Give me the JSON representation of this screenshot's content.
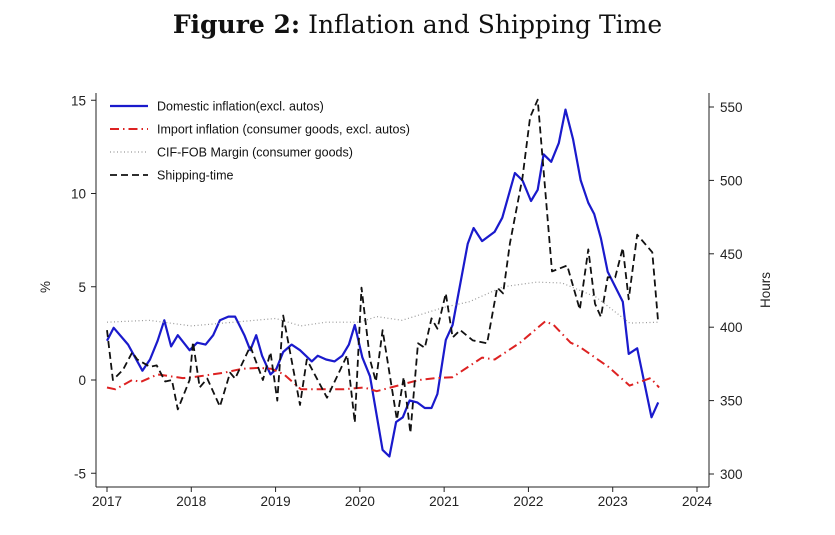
{
  "title": {
    "bold": "Figure 2:",
    "rest": "Inflation and Shipping Time"
  },
  "chart_data": {
    "type": "line",
    "title": "Figure 2: Inflation and Shipping Time",
    "xlabel": "",
    "ylabel": "%",
    "ylabel_right": "Hours",
    "xlim": [
      2017,
      2024
    ],
    "ylim": [
      -5,
      15
    ],
    "ylim_right": [
      300,
      550
    ],
    "x_ticks": [
      "2017",
      "2018",
      "2019",
      "2020",
      "2021",
      "2022",
      "2023",
      "2024"
    ],
    "y_ticks": [
      "-5",
      "0",
      "5",
      "10",
      "15"
    ],
    "y_ticks_right": [
      "300",
      "350",
      "400",
      "450",
      "500",
      "550"
    ],
    "grid": false,
    "legend_position": "top-left",
    "series": [
      {
        "name": "Domestic inflation(excl. autos)",
        "axis": "left",
        "color": "#1a1acc",
        "style": "solid",
        "points": [
          [
            2017.0,
            2.1
          ],
          [
            2017.08,
            2.8
          ],
          [
            2017.25,
            1.9
          ],
          [
            2017.42,
            0.5
          ],
          [
            2017.51,
            1.1
          ],
          [
            2017.6,
            2.1
          ],
          [
            2017.68,
            3.2
          ],
          [
            2017.76,
            1.8
          ],
          [
            2017.84,
            2.4
          ],
          [
            2017.98,
            1.6
          ],
          [
            2018.07,
            2.0
          ],
          [
            2018.17,
            1.9
          ],
          [
            2018.26,
            2.4
          ],
          [
            2018.34,
            3.2
          ],
          [
            2018.44,
            3.4
          ],
          [
            2018.52,
            3.4
          ],
          [
            2018.63,
            2.4
          ],
          [
            2018.7,
            1.6
          ],
          [
            2018.77,
            2.4
          ],
          [
            2018.84,
            1.3
          ],
          [
            2018.94,
            0.3
          ],
          [
            2019.01,
            0.6
          ],
          [
            2019.09,
            1.5
          ],
          [
            2019.19,
            1.9
          ],
          [
            2019.29,
            1.6
          ],
          [
            2019.43,
            1.0
          ],
          [
            2019.5,
            1.3
          ],
          [
            2019.6,
            1.1
          ],
          [
            2019.7,
            1.0
          ],
          [
            2019.79,
            1.3
          ],
          [
            2019.87,
            1.9
          ],
          [
            2019.94,
            2.95
          ],
          [
            2020.03,
            1.2
          ],
          [
            2020.12,
            0.2
          ],
          [
            2020.27,
            -3.75
          ],
          [
            2020.35,
            -4.1
          ],
          [
            2020.43,
            -2.25
          ],
          [
            2020.51,
            -2.0
          ],
          [
            2020.59,
            -1.1
          ],
          [
            2020.68,
            -1.2
          ],
          [
            2020.77,
            -1.5
          ],
          [
            2020.85,
            -1.5
          ],
          [
            2020.92,
            -0.75
          ],
          [
            2021.02,
            2.15
          ],
          [
            2021.1,
            2.95
          ],
          [
            2021.28,
            7.3
          ],
          [
            2021.35,
            8.15
          ],
          [
            2021.45,
            7.45
          ],
          [
            2021.6,
            7.95
          ],
          [
            2021.69,
            8.7
          ],
          [
            2021.84,
            11.1
          ],
          [
            2021.93,
            10.7
          ],
          [
            2022.03,
            9.6
          ],
          [
            2022.11,
            10.2
          ],
          [
            2022.18,
            12.1
          ],
          [
            2022.27,
            11.7
          ],
          [
            2022.36,
            12.7
          ],
          [
            2022.44,
            14.5
          ],
          [
            2022.53,
            12.9
          ],
          [
            2022.62,
            10.7
          ],
          [
            2022.71,
            9.5
          ],
          [
            2022.78,
            8.9
          ],
          [
            2022.86,
            7.6
          ],
          [
            2022.94,
            5.8
          ],
          [
            2023.12,
            4.2
          ],
          [
            2023.19,
            1.4
          ],
          [
            2023.29,
            1.7
          ],
          [
            2023.46,
            -2.0
          ],
          [
            2023.54,
            -1.2
          ]
        ]
      },
      {
        "name": "Import inflation (consumer goods, excl. autos)",
        "axis": "left",
        "color": "#dd2222",
        "style": "dashdot",
        "points": [
          [
            2017.0,
            -0.4
          ],
          [
            2017.1,
            -0.5
          ],
          [
            2017.3,
            0.0
          ],
          [
            2017.4,
            -0.1
          ],
          [
            2017.6,
            0.3
          ],
          [
            2017.9,
            0.1
          ],
          [
            2018.1,
            0.2
          ],
          [
            2018.4,
            0.4
          ],
          [
            2018.6,
            0.6
          ],
          [
            2018.8,
            0.65
          ],
          [
            2018.95,
            0.6
          ],
          [
            2019.1,
            0.3
          ],
          [
            2019.3,
            -0.5
          ],
          [
            2019.5,
            -0.5
          ],
          [
            2019.8,
            -0.5
          ],
          [
            2020.05,
            -0.4
          ],
          [
            2020.2,
            -0.6
          ],
          [
            2020.45,
            -0.3
          ],
          [
            2020.7,
            0.0
          ],
          [
            2020.9,
            0.1
          ],
          [
            2021.1,
            0.15
          ],
          [
            2021.45,
            1.2
          ],
          [
            2021.6,
            1.1
          ],
          [
            2021.9,
            2.0
          ],
          [
            2022.2,
            3.15
          ],
          [
            2022.3,
            2.95
          ],
          [
            2022.5,
            2.0
          ],
          [
            2022.6,
            1.8
          ],
          [
            2022.95,
            0.7
          ],
          [
            2023.2,
            -0.3
          ],
          [
            2023.45,
            0.1
          ],
          [
            2023.55,
            -0.4
          ]
        ]
      },
      {
        "name": "CIF-FOB Margin (consumer goods)",
        "axis": "left",
        "color": "#999999",
        "style": "dotted",
        "points": [
          [
            2017.0,
            3.1
          ],
          [
            2017.5,
            3.2
          ],
          [
            2018.0,
            2.9
          ],
          [
            2018.5,
            3.1
          ],
          [
            2019.0,
            3.3
          ],
          [
            2019.3,
            2.9
          ],
          [
            2019.6,
            3.1
          ],
          [
            2020.0,
            3.1
          ],
          [
            2020.2,
            3.4
          ],
          [
            2020.5,
            3.2
          ],
          [
            2021.0,
            3.9
          ],
          [
            2021.3,
            4.2
          ],
          [
            2021.7,
            5.0
          ],
          [
            2022.1,
            5.25
          ],
          [
            2022.4,
            5.2
          ],
          [
            2022.8,
            4.45
          ],
          [
            2023.2,
            3.05
          ],
          [
            2023.55,
            3.1
          ]
        ]
      },
      {
        "name": "Shipping-time",
        "axis": "right",
        "color": "#111111",
        "style": "dashed",
        "points": [
          [
            2017.0,
            398
          ],
          [
            2017.07,
            364
          ],
          [
            2017.19,
            371
          ],
          [
            2017.3,
            383
          ],
          [
            2017.36,
            378
          ],
          [
            2017.51,
            373
          ],
          [
            2017.59,
            374
          ],
          [
            2017.69,
            363
          ],
          [
            2017.77,
            364
          ],
          [
            2017.84,
            344
          ],
          [
            2017.98,
            364
          ],
          [
            2018.02,
            390
          ],
          [
            2018.1,
            359
          ],
          [
            2018.19,
            365
          ],
          [
            2018.34,
            346
          ],
          [
            2018.46,
            369
          ],
          [
            2018.52,
            365
          ],
          [
            2018.7,
            387
          ],
          [
            2018.85,
            364
          ],
          [
            2018.94,
            383
          ],
          [
            2019.02,
            350
          ],
          [
            2019.09,
            408
          ],
          [
            2019.29,
            347
          ],
          [
            2019.37,
            378
          ],
          [
            2019.61,
            352
          ],
          [
            2019.85,
            381
          ],
          [
            2019.94,
            335
          ],
          [
            2020.02,
            427
          ],
          [
            2020.12,
            378
          ],
          [
            2020.19,
            363
          ],
          [
            2020.27,
            398
          ],
          [
            2020.44,
            337
          ],
          [
            2020.52,
            366
          ],
          [
            2020.6,
            328
          ],
          [
            2020.69,
            389
          ],
          [
            2020.77,
            386
          ],
          [
            2020.85,
            406
          ],
          [
            2020.92,
            399
          ],
          [
            2021.02,
            423
          ],
          [
            2021.1,
            393
          ],
          [
            2021.19,
            398
          ],
          [
            2021.34,
            391
          ],
          [
            2021.51,
            389
          ],
          [
            2021.63,
            427
          ],
          [
            2021.7,
            423
          ],
          [
            2021.78,
            457
          ],
          [
            2021.93,
            502
          ],
          [
            2022.02,
            543
          ],
          [
            2022.11,
            555
          ],
          [
            2022.28,
            438
          ],
          [
            2022.46,
            442
          ],
          [
            2022.61,
            412
          ],
          [
            2022.71,
            453
          ],
          [
            2022.79,
            416
          ],
          [
            2022.86,
            407
          ],
          [
            2022.94,
            434
          ],
          [
            2023.03,
            434
          ],
          [
            2023.12,
            454
          ],
          [
            2023.19,
            419
          ],
          [
            2023.29,
            463
          ],
          [
            2023.47,
            451
          ],
          [
            2023.54,
            403
          ]
        ]
      }
    ]
  }
}
